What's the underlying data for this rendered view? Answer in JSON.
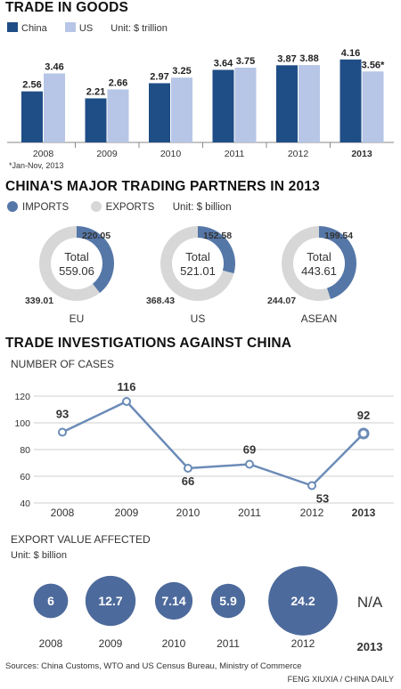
{
  "colors": {
    "china": "#1f4e86",
    "us": "#b7c6e6",
    "imports": "#5577a8",
    "exports": "#d7d7d7",
    "line": "#6b8bb8",
    "bubble": "#4d6a9c"
  },
  "trade": {
    "title": "TRADE IN GOODS",
    "legend": {
      "china": "China",
      "us": "US",
      "unit": "Unit: $ trillion"
    },
    "footnote": "*Jan-Nov, 2013"
  },
  "partners": {
    "title": "CHINA'S MAJOR TRADING PARTNERS IN 2013",
    "legend": {
      "imports": "IMPORTS",
      "exports": "EXPORTS",
      "unit": "Unit: $ billion"
    },
    "total_label": "Total"
  },
  "investigations": {
    "title": "TRADE INVESTIGATIONS AGAINST CHINA",
    "cases_label": "NUMBER OF CASES",
    "value_label": "EXPORT VALUE AFFECTED",
    "value_unit": "Unit: $ billion",
    "na_label": "N/A"
  },
  "footer": {
    "sources": "Sources: China Customs, WTO and US Census Bureau, Ministry of Commerce",
    "credit": "FENG XIUXIA / CHINA DAILY"
  },
  "chart_data": [
    {
      "type": "bar",
      "title": "TRADE IN GOODS",
      "unit": "$ trillion",
      "categories": [
        "2008",
        "2009",
        "2010",
        "2011",
        "2012",
        "2013"
      ],
      "series": [
        {
          "name": "China",
          "values": [
            2.56,
            2.21,
            2.97,
            3.64,
            3.87,
            4.16
          ],
          "labels": [
            "2.56",
            "2.21",
            "2.97",
            "3.64",
            "3.87",
            "4.16"
          ]
        },
        {
          "name": "US",
          "values": [
            3.46,
            2.66,
            3.25,
            3.75,
            3.88,
            3.56
          ],
          "labels": [
            "3.46",
            "2.66",
            "3.25",
            "3.75",
            "3.88",
            "3.56*"
          ]
        }
      ]
    },
    {
      "type": "pie",
      "title": "CHINA'S MAJOR TRADING PARTNERS IN 2013",
      "unit": "$ billion",
      "charts": [
        {
          "name": "EU",
          "total": "559.06",
          "imports": 220.05,
          "exports": 339.01,
          "imports_label": "220.05",
          "exports_label": "339.01"
        },
        {
          "name": "US",
          "total": "521.01",
          "imports": 152.58,
          "exports": 368.43,
          "imports_label": "152.58",
          "exports_label": "368.43"
        },
        {
          "name": "ASEAN",
          "total": "443.61",
          "imports": 199.54,
          "exports": 244.07,
          "imports_label": "199.54",
          "exports_label": "244.07"
        }
      ]
    },
    {
      "type": "line",
      "title": "NUMBER OF CASES",
      "x": [
        "2008",
        "2009",
        "2010",
        "2011",
        "2012",
        "2013"
      ],
      "y": [
        93,
        116,
        66,
        69,
        53,
        92
      ],
      "ylim": [
        40,
        120
      ],
      "yticks": [
        "40",
        "60",
        "80",
        "100",
        "120"
      ],
      "grid": true
    },
    {
      "type": "scatter",
      "title": "EXPORT VALUE AFFECTED",
      "unit": "$ billion",
      "x": [
        "2008",
        "2009",
        "2010",
        "2011",
        "2012",
        "2013"
      ],
      "values": [
        6,
        12.7,
        7.14,
        5.9,
        24.2,
        null
      ],
      "labels": [
        "6",
        "12.7",
        "7.14",
        "5.9",
        "24.2",
        "N/A"
      ]
    }
  ]
}
